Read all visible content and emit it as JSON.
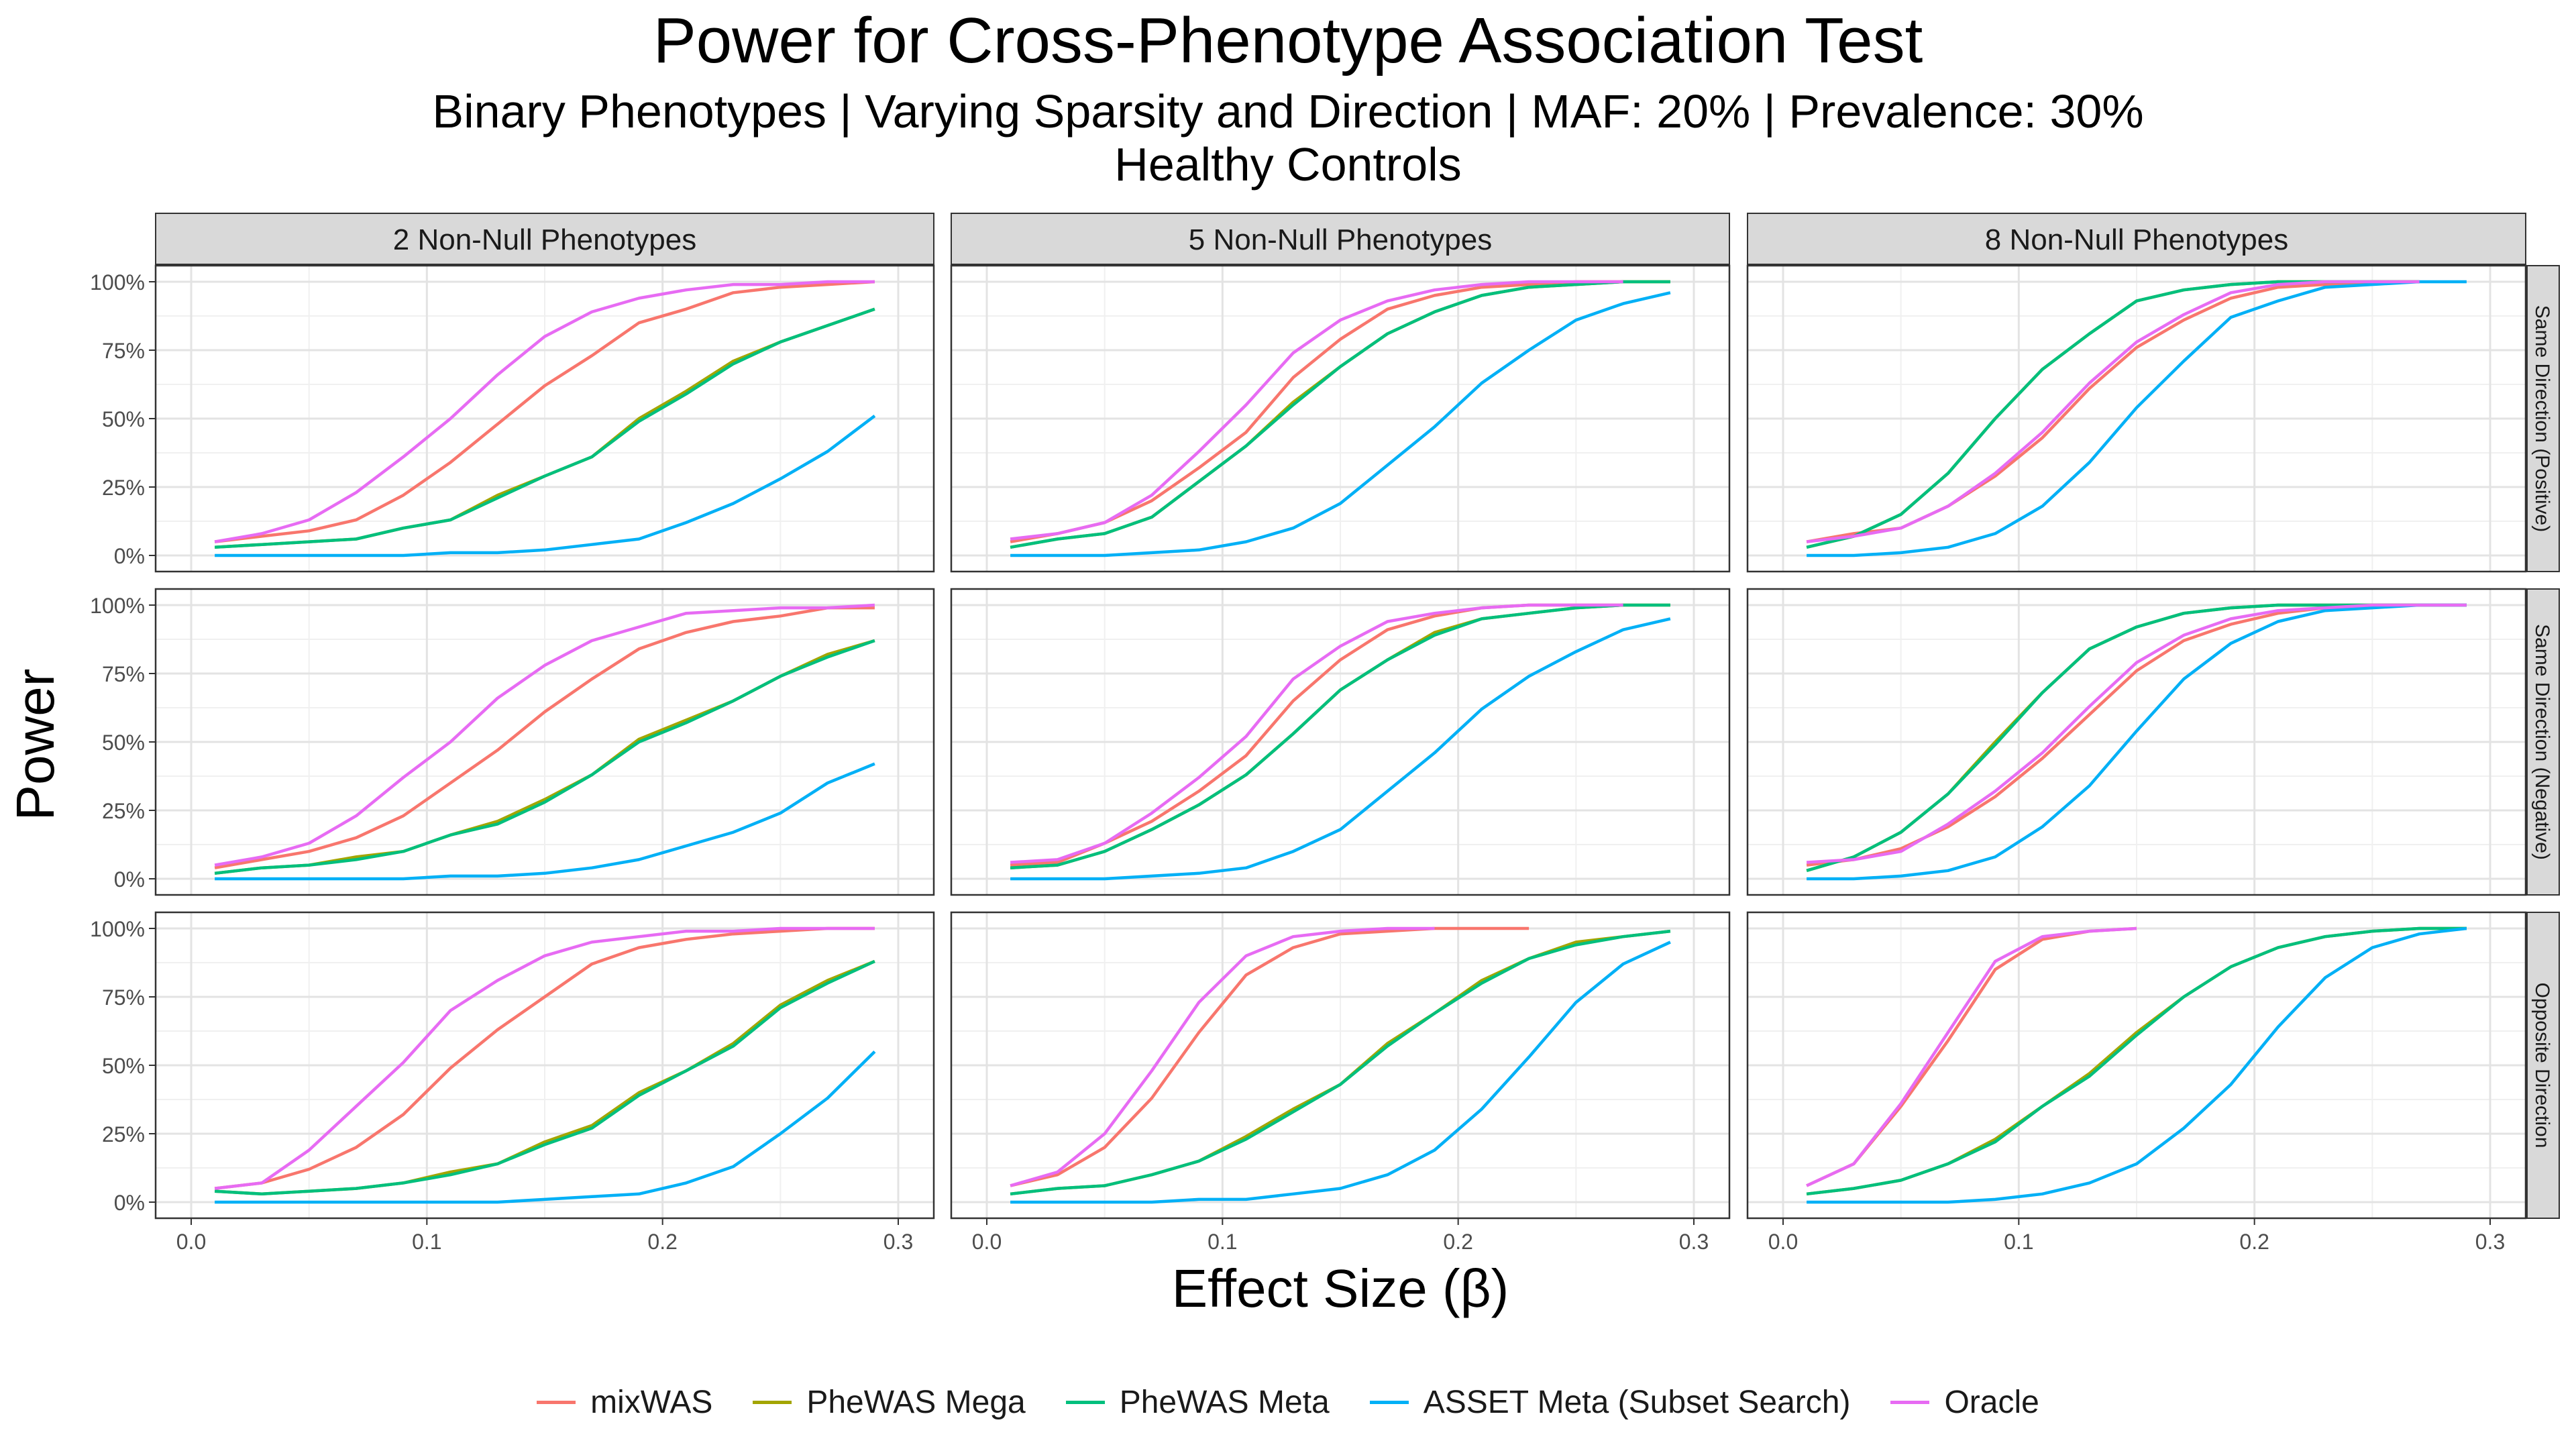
{
  "chart_data": {
    "type": "line",
    "title": "Power for Cross-Phenotype Association Test",
    "subtitle": "Binary Phenotypes | Varying Sparsity and Direction | MAF: 20% | Prevalence: 30%",
    "subtitle2": "Healthy Controls",
    "xlabel": "Effect Size (β)",
    "ylabel": "Power",
    "xlim": [
      0,
      0.3
    ],
    "ylim": [
      0,
      1
    ],
    "x_ticks": [
      "0.0",
      "0.1",
      "0.2",
      "0.3"
    ],
    "y_ticks": [
      "0%",
      "25%",
      "50%",
      "75%",
      "100%"
    ],
    "grid": true,
    "legend_position": "bottom",
    "col_facets": [
      "2 Non-Null Phenotypes",
      "5 Non-Null Phenotypes",
      "8 Non-Null Phenotypes"
    ],
    "row_facets": [
      "Same Direction (Positive)",
      "Same Direction (Negative)",
      "Opposite Direction"
    ],
    "series_meta": [
      {
        "name": "mixWAS",
        "color": "#F8766D"
      },
      {
        "name": "PheWAS Mega",
        "color": "#A3A500"
      },
      {
        "name": "PheWAS Meta",
        "color": "#00BF7D"
      },
      {
        "name": "ASSET Meta (Subset Search)",
        "color": "#00B0F6"
      },
      {
        "name": "Oracle",
        "color": "#E76BF3"
      }
    ],
    "x": [
      0.01,
      0.03,
      0.05,
      0.07,
      0.09,
      0.11,
      0.13,
      0.15,
      0.17,
      0.19,
      0.21,
      0.23,
      0.25,
      0.27,
      0.29
    ],
    "panels": [
      {
        "row": 0,
        "col": 0,
        "series": [
          {
            "name": "mixWAS",
            "values": [
              0.05,
              0.07,
              0.09,
              0.13,
              0.22,
              0.34,
              0.48,
              0.62,
              0.73,
              0.85,
              0.9,
              0.96,
              0.98,
              0.99,
              1.0
            ]
          },
          {
            "name": "PheWAS Mega",
            "values": [
              0.03,
              0.04,
              0.05,
              0.06,
              0.1,
              0.13,
              0.22,
              0.29,
              0.36,
              0.5,
              0.6,
              0.71,
              0.78,
              0.84,
              0.9
            ]
          },
          {
            "name": "PheWAS Meta",
            "values": [
              0.03,
              0.04,
              0.05,
              0.06,
              0.1,
              0.13,
              0.21,
              0.29,
              0.36,
              0.49,
              0.59,
              0.7,
              0.78,
              0.84,
              0.9
            ]
          },
          {
            "name": "ASSET Meta (Subset Search)",
            "values": [
              0.0,
              0.0,
              0.0,
              0.0,
              0.0,
              0.01,
              0.01,
              0.02,
              0.04,
              0.06,
              0.12,
              0.19,
              0.28,
              0.38,
              0.51
            ]
          },
          {
            "name": "Oracle",
            "values": [
              0.05,
              0.08,
              0.13,
              0.23,
              0.36,
              0.5,
              0.66,
              0.8,
              0.89,
              0.94,
              0.97,
              0.99,
              0.99,
              1.0,
              1.0
            ]
          }
        ]
      },
      {
        "row": 0,
        "col": 1,
        "series": [
          {
            "name": "mixWAS",
            "values": [
              0.05,
              0.08,
              0.12,
              0.2,
              0.32,
              0.45,
              0.65,
              0.79,
              0.9,
              0.95,
              0.98,
              0.99,
              1.0,
              1.0
            ]
          },
          {
            "name": "PheWAS Mega",
            "values": [
              0.03,
              0.06,
              0.08,
              0.14,
              0.27,
              0.4,
              0.56,
              0.69,
              0.81,
              0.89,
              0.95,
              0.98,
              0.99,
              1.0,
              1.0
            ]
          },
          {
            "name": "PheWAS Meta",
            "values": [
              0.03,
              0.06,
              0.08,
              0.14,
              0.27,
              0.4,
              0.55,
              0.69,
              0.81,
              0.89,
              0.95,
              0.98,
              0.99,
              1.0,
              1.0
            ]
          },
          {
            "name": "ASSET Meta (Subset Search)",
            "values": [
              0.0,
              0.0,
              0.0,
              0.01,
              0.02,
              0.05,
              0.1,
              0.19,
              0.33,
              0.47,
              0.63,
              0.75,
              0.86,
              0.92,
              0.96
            ]
          },
          {
            "name": "Oracle",
            "values": [
              0.06,
              0.08,
              0.12,
              0.22,
              0.38,
              0.55,
              0.74,
              0.86,
              0.93,
              0.97,
              0.99,
              1.0,
              1.0,
              1.0
            ]
          }
        ]
      },
      {
        "row": 0,
        "col": 2,
        "series": [
          {
            "name": "mixWAS",
            "values": [
              0.05,
              0.08,
              0.1,
              0.18,
              0.29,
              0.43,
              0.61,
              0.76,
              0.86,
              0.94,
              0.98,
              0.99,
              1.0,
              1.0
            ]
          },
          {
            "name": "PheWAS Mega",
            "values": [
              0.03,
              0.07,
              0.15,
              0.3,
              0.5,
              0.68,
              0.81,
              0.93,
              0.97,
              0.99,
              1.0,
              1.0,
              1.0,
              1.0
            ]
          },
          {
            "name": "PheWAS Meta",
            "values": [
              0.03,
              0.07,
              0.15,
              0.3,
              0.5,
              0.68,
              0.81,
              0.93,
              0.97,
              0.99,
              1.0,
              1.0,
              1.0,
              1.0
            ]
          },
          {
            "name": "ASSET Meta (Subset Search)",
            "values": [
              0.0,
              0.0,
              0.01,
              0.03,
              0.08,
              0.18,
              0.34,
              0.54,
              0.71,
              0.87,
              0.93,
              0.98,
              0.99,
              1.0,
              1.0
            ]
          },
          {
            "name": "Oracle",
            "values": [
              0.05,
              0.07,
              0.1,
              0.18,
              0.3,
              0.45,
              0.63,
              0.78,
              0.88,
              0.96,
              0.99,
              1.0,
              1.0,
              1.0
            ]
          }
        ]
      },
      {
        "row": 1,
        "col": 0,
        "series": [
          {
            "name": "mixWAS",
            "values": [
              0.04,
              0.07,
              0.1,
              0.15,
              0.23,
              0.35,
              0.47,
              0.61,
              0.73,
              0.84,
              0.9,
              0.94,
              0.96,
              0.99,
              0.99
            ]
          },
          {
            "name": "PheWAS Mega",
            "values": [
              0.02,
              0.04,
              0.05,
              0.08,
              0.1,
              0.16,
              0.21,
              0.29,
              0.38,
              0.51,
              0.58,
              0.65,
              0.74,
              0.82,
              0.87
            ]
          },
          {
            "name": "PheWAS Meta",
            "values": [
              0.02,
              0.04,
              0.05,
              0.07,
              0.1,
              0.16,
              0.2,
              0.28,
              0.38,
              0.5,
              0.57,
              0.65,
              0.74,
              0.81,
              0.87
            ]
          },
          {
            "name": "ASSET Meta (Subset Search)",
            "values": [
              0.0,
              0.0,
              0.0,
              0.0,
              0.0,
              0.01,
              0.01,
              0.02,
              0.04,
              0.07,
              0.12,
              0.17,
              0.24,
              0.35,
              0.42
            ]
          },
          {
            "name": "Oracle",
            "values": [
              0.05,
              0.08,
              0.13,
              0.23,
              0.37,
              0.5,
              0.66,
              0.78,
              0.87,
              0.92,
              0.97,
              0.98,
              0.99,
              0.99,
              1.0
            ]
          }
        ]
      },
      {
        "row": 1,
        "col": 1,
        "series": [
          {
            "name": "mixWAS",
            "values": [
              0.05,
              0.06,
              0.13,
              0.21,
              0.32,
              0.45,
              0.65,
              0.8,
              0.91,
              0.96,
              0.99,
              1.0,
              1.0,
              1.0
            ]
          },
          {
            "name": "PheWAS Mega",
            "values": [
              0.04,
              0.05,
              0.1,
              0.18,
              0.27,
              0.38,
              0.53,
              0.69,
              0.8,
              0.9,
              0.95,
              0.97,
              0.99,
              1.0,
              1.0
            ]
          },
          {
            "name": "PheWAS Meta",
            "values": [
              0.04,
              0.05,
              0.1,
              0.18,
              0.27,
              0.38,
              0.53,
              0.69,
              0.8,
              0.89,
              0.95,
              0.97,
              0.99,
              1.0,
              1.0
            ]
          },
          {
            "name": "ASSET Meta (Subset Search)",
            "values": [
              0.0,
              0.0,
              0.0,
              0.01,
              0.02,
              0.04,
              0.1,
              0.18,
              0.32,
              0.46,
              0.62,
              0.74,
              0.83,
              0.91,
              0.95
            ]
          },
          {
            "name": "Oracle",
            "values": [
              0.06,
              0.07,
              0.13,
              0.24,
              0.37,
              0.52,
              0.73,
              0.85,
              0.94,
              0.97,
              0.99,
              1.0,
              1.0,
              1.0
            ]
          }
        ]
      },
      {
        "row": 1,
        "col": 2,
        "series": [
          {
            "name": "mixWAS",
            "values": [
              0.05,
              0.07,
              0.11,
              0.19,
              0.3,
              0.44,
              0.6,
              0.76,
              0.87,
              0.93,
              0.97,
              0.99,
              1.0,
              1.0,
              1.0
            ]
          },
          {
            "name": "PheWAS Mega",
            "values": [
              0.03,
              0.08,
              0.17,
              0.31,
              0.5,
              0.68,
              0.84,
              0.92,
              0.97,
              0.99,
              1.0,
              1.0,
              1.0,
              1.0,
              1.0
            ]
          },
          {
            "name": "PheWAS Meta",
            "values": [
              0.03,
              0.08,
              0.17,
              0.31,
              0.49,
              0.68,
              0.84,
              0.92,
              0.97,
              0.99,
              1.0,
              1.0,
              1.0,
              1.0,
              1.0
            ]
          },
          {
            "name": "ASSET Meta (Subset Search)",
            "values": [
              0.0,
              0.0,
              0.01,
              0.03,
              0.08,
              0.19,
              0.34,
              0.54,
              0.73,
              0.86,
              0.94,
              0.98,
              0.99,
              1.0,
              1.0
            ]
          },
          {
            "name": "Oracle",
            "values": [
              0.06,
              0.07,
              0.1,
              0.2,
              0.32,
              0.46,
              0.63,
              0.79,
              0.89,
              0.95,
              0.98,
              0.99,
              1.0,
              1.0,
              1.0
            ]
          }
        ]
      },
      {
        "row": 2,
        "col": 0,
        "series": [
          {
            "name": "mixWAS",
            "values": [
              0.05,
              0.07,
              0.12,
              0.2,
              0.32,
              0.49,
              0.63,
              0.75,
              0.87,
              0.93,
              0.96,
              0.98,
              0.99,
              1.0,
              1.0
            ]
          },
          {
            "name": "PheWAS Mega",
            "values": [
              0.04,
              0.03,
              0.04,
              0.05,
              0.07,
              0.11,
              0.14,
              0.22,
              0.28,
              0.4,
              0.48,
              0.58,
              0.72,
              0.81,
              0.88
            ]
          },
          {
            "name": "PheWAS Meta",
            "values": [
              0.04,
              0.03,
              0.04,
              0.05,
              0.07,
              0.1,
              0.14,
              0.21,
              0.27,
              0.39,
              0.48,
              0.57,
              0.71,
              0.8,
              0.88
            ]
          },
          {
            "name": "ASSET Meta (Subset Search)",
            "values": [
              0.0,
              0.0,
              0.0,
              0.0,
              0.0,
              0.0,
              0.0,
              0.01,
              0.02,
              0.03,
              0.07,
              0.13,
              0.25,
              0.38,
              0.55
            ]
          },
          {
            "name": "Oracle",
            "values": [
              0.05,
              0.07,
              0.19,
              0.35,
              0.51,
              0.7,
              0.81,
              0.9,
              0.95,
              0.97,
              0.99,
              0.99,
              1.0,
              1.0,
              1.0
            ]
          }
        ]
      },
      {
        "row": 2,
        "col": 1,
        "series": [
          {
            "name": "mixWAS",
            "values": [
              0.06,
              0.1,
              0.2,
              0.38,
              0.62,
              0.83,
              0.93,
              0.98,
              0.99,
              1.0,
              1.0,
              1.0
            ]
          },
          {
            "name": "PheWAS Mega",
            "values": [
              0.03,
              0.05,
              0.06,
              0.1,
              0.15,
              0.24,
              0.34,
              0.43,
              0.58,
              0.69,
              0.81,
              0.89,
              0.95,
              0.97,
              0.99
            ]
          },
          {
            "name": "PheWAS Meta",
            "values": [
              0.03,
              0.05,
              0.06,
              0.1,
              0.15,
              0.23,
              0.33,
              0.43,
              0.57,
              0.69,
              0.8,
              0.89,
              0.94,
              0.97,
              0.99
            ]
          },
          {
            "name": "ASSET Meta (Subset Search)",
            "values": [
              0.0,
              0.0,
              0.0,
              0.0,
              0.01,
              0.01,
              0.03,
              0.05,
              0.1,
              0.19,
              0.34,
              0.53,
              0.73,
              0.87,
              0.95
            ]
          },
          {
            "name": "Oracle",
            "values": [
              0.06,
              0.11,
              0.25,
              0.48,
              0.73,
              0.9,
              0.97,
              0.99,
              1.0,
              1.0
            ]
          }
        ]
      },
      {
        "row": 2,
        "col": 2,
        "series": [
          {
            "name": "mixWAS",
            "values": [
              0.06,
              0.14,
              0.35,
              0.59,
              0.85,
              0.96,
              0.99,
              1.0
            ]
          },
          {
            "name": "PheWAS Mega",
            "values": [
              0.03,
              0.05,
              0.08,
              0.14,
              0.23,
              0.35,
              0.47,
              0.62,
              0.75,
              0.86,
              0.93,
              0.97,
              0.99,
              1.0,
              1.0
            ]
          },
          {
            "name": "PheWAS Meta",
            "values": [
              0.03,
              0.05,
              0.08,
              0.14,
              0.22,
              0.35,
              0.46,
              0.61,
              0.75,
              0.86,
              0.93,
              0.97,
              0.99,
              1.0,
              1.0
            ]
          },
          {
            "name": "ASSET Meta (Subset Search)",
            "values": [
              0.0,
              0.0,
              0.0,
              0.0,
              0.01,
              0.03,
              0.07,
              0.14,
              0.27,
              0.43,
              0.64,
              0.82,
              0.93,
              0.98,
              1.0
            ]
          },
          {
            "name": "Oracle",
            "values": [
              0.06,
              0.14,
              0.36,
              0.62,
              0.88,
              0.97,
              0.99,
              1.0
            ]
          }
        ]
      }
    ]
  }
}
